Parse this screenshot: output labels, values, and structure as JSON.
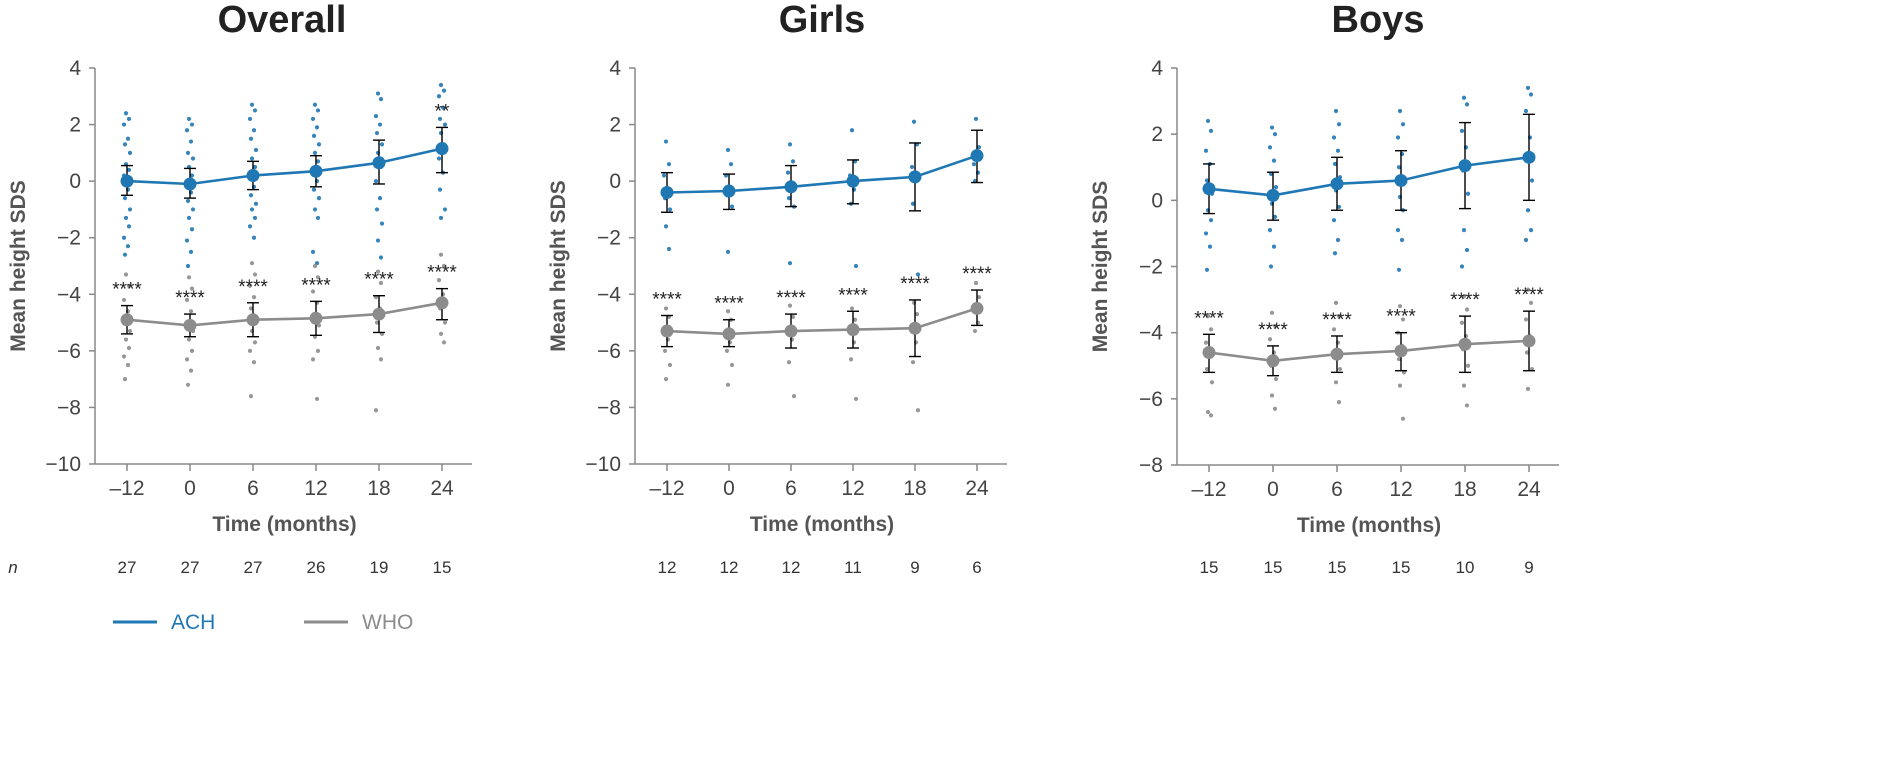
{
  "n_label": "n",
  "legend": [
    {
      "name": "ACH",
      "color": "#1f77b4"
    },
    {
      "name": "WHO",
      "color": "#8c8c8c"
    }
  ],
  "colors": {
    "ach": "#1f77b4",
    "who": "#8c8c8c",
    "error_bar": "#000000",
    "axis": "#888888"
  },
  "chart_data": [
    {
      "type": "line",
      "title": "Overall",
      "xlabel": "Time (months)",
      "ylabel": "Mean height SDS",
      "categories": [
        "–12",
        "0",
        "6",
        "12",
        "18",
        "24"
      ],
      "ylim": [
        -10,
        4
      ],
      "yticks": [
        "4",
        "2",
        "0",
        "−2",
        "−4",
        "−6",
        "−8",
        "−10"
      ],
      "n": [
        "27",
        "27",
        "27",
        "26",
        "19",
        "15"
      ],
      "series": [
        {
          "name": "ACH",
          "values": [
            0.0,
            -0.1,
            0.2,
            0.35,
            0.65,
            1.15
          ],
          "err_low": [
            -0.5,
            -0.6,
            -0.3,
            -0.2,
            -0.1,
            0.3
          ],
          "err_high": [
            0.55,
            0.45,
            0.7,
            0.9,
            1.45,
            1.9
          ],
          "points": [
            [
              2.4,
              2.2,
              2.0,
              1.5,
              1.3,
              1.0,
              0.6,
              0.4,
              0.2,
              -0.3,
              -0.6,
              -1.0,
              -1.3,
              -1.6,
              -2.0,
              -2.3,
              -2.6
            ],
            [
              2.2,
              2.0,
              1.8,
              1.4,
              1.0,
              0.8,
              0.5,
              0.2,
              -0.2,
              -0.4,
              -0.7,
              -1.0,
              -1.3,
              -1.7,
              -2.1,
              -2.5,
              -3.0
            ],
            [
              2.7,
              2.5,
              2.2,
              1.8,
              1.5,
              1.1,
              0.8,
              0.5,
              0.2,
              -0.2,
              -0.5,
              -0.8,
              -1.0,
              -1.3,
              -1.6,
              -2.0
            ],
            [
              2.7,
              2.5,
              2.2,
              1.9,
              1.6,
              1.3,
              1.0,
              0.7,
              0.4,
              0.0,
              -0.3,
              -0.6,
              -1.0,
              -1.3,
              -2.5,
              -2.9
            ],
            [
              3.1,
              2.9,
              2.3,
              2.0,
              1.7,
              1.3,
              1.0,
              0.5,
              0.0,
              -0.6,
              -1.0,
              -1.5,
              -2.1,
              -2.7
            ],
            [
              3.4,
              3.2,
              3.0,
              2.6,
              2.2,
              2.0,
              1.7,
              1.3,
              0.8,
              0.3,
              -0.3,
              -1.0,
              -1.3
            ]
          ],
          "significance": [
            "",
            "",
            "",
            "",
            "",
            "**"
          ]
        },
        {
          "name": "WHO",
          "values": [
            -4.9,
            -5.1,
            -4.9,
            -4.85,
            -4.7,
            -4.3
          ],
          "err_low": [
            -5.4,
            -5.5,
            -5.5,
            -5.45,
            -5.35,
            -4.9
          ],
          "err_high": [
            -4.4,
            -4.7,
            -4.3,
            -4.25,
            -4.05,
            -3.8
          ],
          "points": [
            [
              -3.3,
              -3.7,
              -4.2,
              -4.6,
              -5.0,
              -5.3,
              -5.6,
              -5.9,
              -6.2,
              -6.5,
              -7.0
            ],
            [
              -3.4,
              -3.8,
              -4.2,
              -4.6,
              -5.0,
              -5.3,
              -5.6,
              -6.0,
              -6.3,
              -6.7,
              -7.2
            ],
            [
              -2.9,
              -3.3,
              -3.7,
              -4.1,
              -4.5,
              -4.9,
              -5.3,
              -5.7,
              -6.0,
              -6.4,
              -7.6
            ],
            [
              -3.0,
              -3.4,
              -3.9,
              -4.3,
              -4.7,
              -5.1,
              -5.5,
              -6.0,
              -6.3,
              -7.7
            ],
            [
              -3.2,
              -3.6,
              -4.1,
              -4.5,
              -5.0,
              -5.4,
              -5.9,
              -6.3,
              -8.1
            ],
            [
              -2.6,
              -3.0,
              -3.5,
              -4.0,
              -4.5,
              -5.0,
              -5.4,
              -5.7
            ]
          ],
          "significance": [
            "****",
            "****",
            "****",
            "****",
            "****",
            "****"
          ]
        }
      ]
    },
    {
      "type": "line",
      "title": "Girls",
      "xlabel": "Time (months)",
      "ylabel": "Mean height SDS",
      "categories": [
        "–12",
        "0",
        "6",
        "12",
        "18",
        "24"
      ],
      "ylim": [
        -10,
        4
      ],
      "yticks": [
        "4",
        "2",
        "0",
        "−2",
        "−4",
        "−6",
        "−8",
        "−10"
      ],
      "n": [
        "12",
        "12",
        "12",
        "11",
        "9",
        "6"
      ],
      "series": [
        {
          "name": "ACH",
          "values": [
            -0.4,
            -0.35,
            -0.2,
            0.0,
            0.15,
            0.9
          ],
          "err_low": [
            -1.1,
            -1.0,
            -0.9,
            -0.8,
            -1.05,
            -0.05
          ],
          "err_high": [
            0.3,
            0.25,
            0.55,
            0.75,
            1.35,
            1.8
          ],
          "points": [
            [
              1.4,
              0.6,
              0.2,
              -0.3,
              -0.6,
              -1.0,
              -1.6,
              -2.4
            ],
            [
              1.1,
              0.6,
              0.2,
              -0.2,
              -0.5,
              -0.9,
              -2.5
            ],
            [
              1.3,
              0.7,
              0.3,
              -0.2,
              -0.6,
              -0.9,
              -2.9
            ],
            [
              1.8,
              0.7,
              0.2,
              -0.3,
              -0.8,
              -3.0
            ],
            [
              2.1,
              1.3,
              0.5,
              0.0,
              -0.8,
              -3.3
            ],
            [
              2.2,
              1.2,
              0.6,
              0.3,
              0.0
            ]
          ],
          "significance": [
            "",
            "",
            "",
            "",
            "",
            ""
          ]
        },
        {
          "name": "WHO",
          "values": [
            -5.3,
            -5.4,
            -5.3,
            -5.25,
            -5.2,
            -4.5
          ],
          "err_low": [
            -5.85,
            -5.85,
            -5.9,
            -5.9,
            -6.2,
            -5.1
          ],
          "err_high": [
            -4.75,
            -4.9,
            -4.7,
            -4.6,
            -4.2,
            -3.85
          ],
          "points": [
            [
              -4.5,
              -4.8,
              -5.2,
              -5.6,
              -6.0,
              -6.5,
              -7.0
            ],
            [
              -4.6,
              -4.9,
              -5.3,
              -5.7,
              -6.0,
              -6.5,
              -7.2
            ],
            [
              -4.4,
              -4.8,
              -5.2,
              -5.6,
              -6.4,
              -7.6
            ],
            [
              -4.5,
              -4.9,
              -5.3,
              -5.7,
              -6.3,
              -7.7
            ],
            [
              -4.3,
              -4.7,
              -5.2,
              -5.7,
              -6.4,
              -8.1
            ],
            [
              -3.6,
              -4.1,
              -4.6,
              -5.0,
              -5.3
            ]
          ],
          "significance": [
            "****",
            "****",
            "****",
            "****",
            "****",
            "****"
          ]
        }
      ]
    },
    {
      "type": "line",
      "title": "Boys",
      "xlabel": "Time (months)",
      "ylabel": "Mean height SDS",
      "categories": [
        "–12",
        "0",
        "6",
        "12",
        "18",
        "24"
      ],
      "ylim": [
        -8,
        4
      ],
      "yticks": [
        "4",
        "2",
        "0",
        "−2",
        "−4",
        "−6",
        "−8"
      ],
      "n": [
        "15",
        "15",
        "15",
        "15",
        "10",
        "9"
      ],
      "series": [
        {
          "name": "ACH",
          "values": [
            0.35,
            0.15,
            0.5,
            0.6,
            1.05,
            1.3
          ],
          "err_low": [
            -0.4,
            -0.6,
            -0.3,
            -0.3,
            -0.25,
            0.0
          ],
          "err_high": [
            1.1,
            0.85,
            1.3,
            1.5,
            2.35,
            2.6
          ],
          "points": [
            [
              2.4,
              2.1,
              1.5,
              1.1,
              0.6,
              0.2,
              -0.3,
              -0.6,
              -1.0,
              -1.4,
              -2.1
            ],
            [
              2.2,
              2.0,
              1.6,
              1.2,
              0.8,
              0.4,
              -0.1,
              -0.5,
              -0.9,
              -1.4,
              -2.0
            ],
            [
              2.7,
              2.3,
              1.9,
              1.5,
              1.1,
              0.7,
              0.3,
              -0.2,
              -0.6,
              -1.2,
              -1.6
            ],
            [
              2.7,
              2.3,
              1.9,
              1.4,
              1.0,
              0.6,
              0.1,
              -0.3,
              -0.9,
              -1.2,
              -2.1
            ],
            [
              3.1,
              2.9,
              2.1,
              1.6,
              0.9,
              0.2,
              -0.9,
              -1.5,
              -2.0
            ],
            [
              3.4,
              3.2,
              2.7,
              1.9,
              1.3,
              0.6,
              -0.3,
              -0.9,
              -1.2
            ]
          ],
          "significance": [
            "",
            "",
            "",
            "",
            "",
            ""
          ]
        },
        {
          "name": "WHO",
          "values": [
            -4.6,
            -4.85,
            -4.65,
            -4.55,
            -4.35,
            -4.25
          ],
          "err_low": [
            -5.2,
            -5.3,
            -5.2,
            -5.15,
            -5.2,
            -5.15
          ],
          "err_high": [
            -4.05,
            -4.4,
            -4.1,
            -4.0,
            -3.5,
            -3.35
          ],
          "points": [
            [
              -3.5,
              -3.9,
              -4.3,
              -4.7,
              -5.1,
              -5.5,
              -6.4,
              -6.5
            ],
            [
              -3.4,
              -3.8,
              -4.2,
              -4.6,
              -5.0,
              -5.4,
              -5.9,
              -6.3
            ],
            [
              -3.1,
              -3.5,
              -3.9,
              -4.3,
              -4.7,
              -5.1,
              -5.5,
              -6.1
            ],
            [
              -3.2,
              -3.6,
              -4.0,
              -4.4,
              -4.8,
              -5.2,
              -5.6,
              -6.6
            ],
            [
              -2.9,
              -3.3,
              -3.7,
              -4.1,
              -4.5,
              -5.0,
              -5.6,
              -6.2
            ],
            [
              -2.7,
              -3.1,
              -3.6,
              -4.1,
              -4.6,
              -5.1,
              -5.7
            ]
          ],
          "significance": [
            "****",
            "****",
            "****",
            "****",
            "****",
            "****"
          ]
        }
      ]
    }
  ]
}
